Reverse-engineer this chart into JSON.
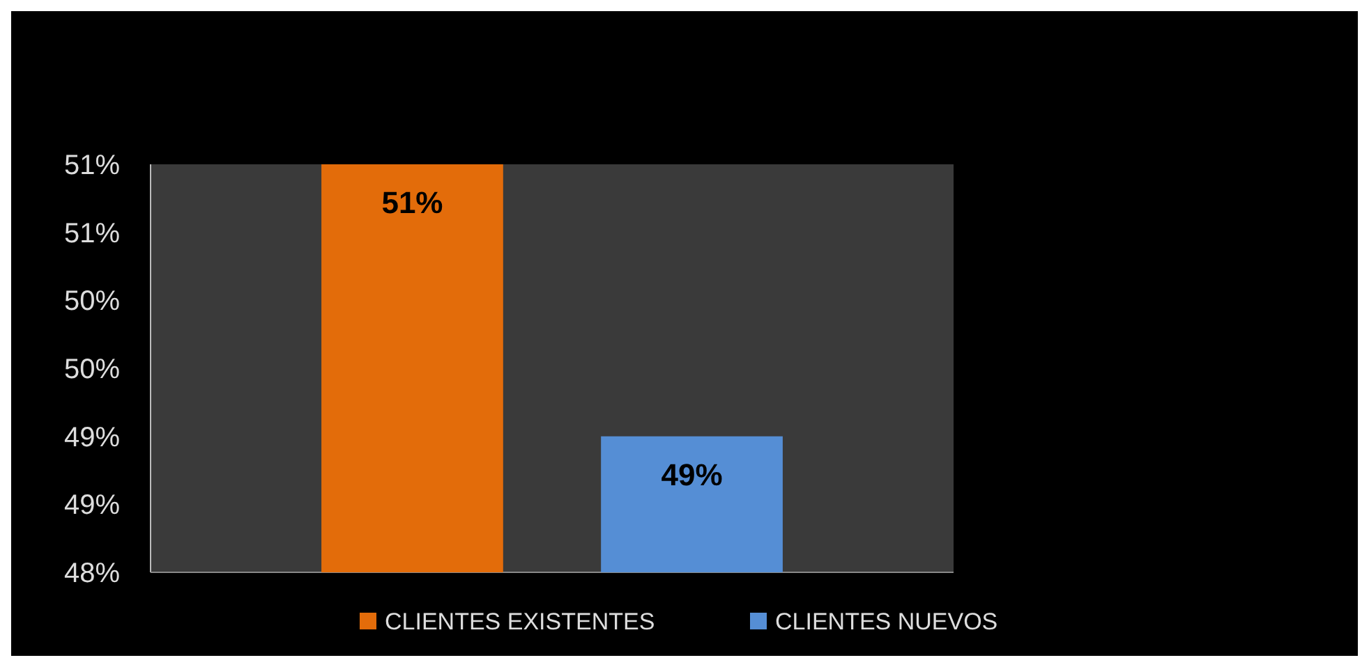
{
  "chart_data": {
    "type": "bar",
    "categories": [
      null
    ],
    "series": [
      {
        "name": "CLIENTES EXISTENTES",
        "color": "#e36c0a",
        "values": [
          51
        ]
      },
      {
        "name": "CLIENTES NUEVOS",
        "color": "#558ed5",
        "values": [
          49
        ]
      }
    ],
    "ylim": [
      48,
      51
    ],
    "yticks": [
      {
        "value": 48,
        "label": "48%"
      },
      {
        "value": 48.5,
        "label": "49%"
      },
      {
        "value": 49,
        "label": "49%"
      },
      {
        "value": 49.5,
        "label": "50%"
      },
      {
        "value": 50,
        "label": "50%"
      },
      {
        "value": 50.5,
        "label": "51%"
      },
      {
        "value": 51,
        "label": "51%"
      }
    ],
    "value_labels": [
      "51%",
      "49%"
    ],
    "legend": "bottom"
  }
}
